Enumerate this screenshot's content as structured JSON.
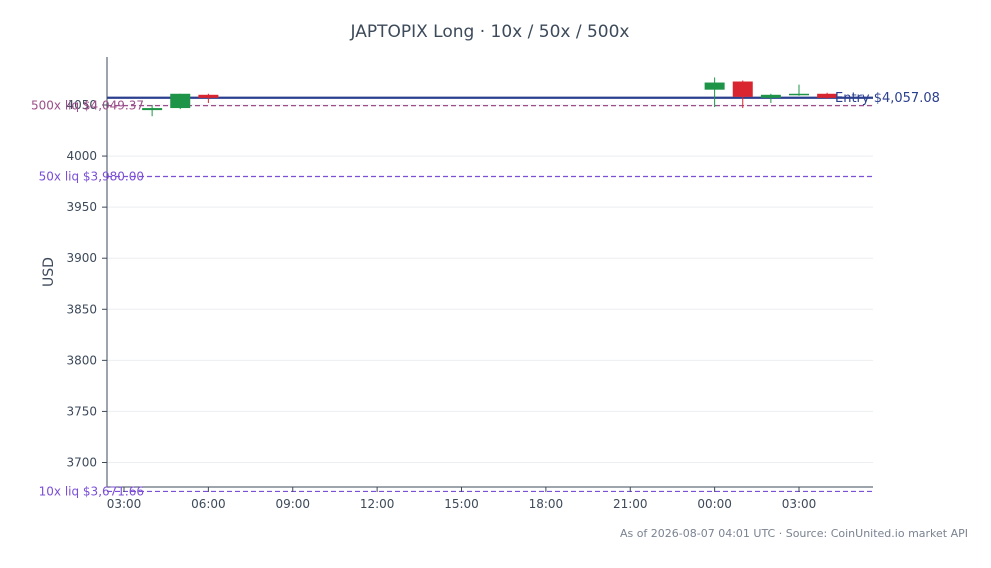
{
  "chart_data": {
    "type": "candlestick",
    "title": "JAPTOPIX Long · 10x / 50x / 500x",
    "xlabel": "",
    "ylabel": "USD",
    "ylim": [
      3676,
      4097
    ],
    "y_ticks": [
      3700,
      3750,
      3800,
      3850,
      3900,
      3950,
      4000,
      4050
    ],
    "x_ticks": [
      "03:00",
      "06:00",
      "09:00",
      "12:00",
      "15:00",
      "18:00",
      "21:00",
      "00:00",
      "03:00"
    ],
    "grid": true,
    "legend": "none",
    "candles": [
      {
        "time": "04:00",
        "open": 4045,
        "high": 4050,
        "low": 4039,
        "close": 4047
      },
      {
        "time": "05:00",
        "open": 4047,
        "high": 4061,
        "low": 4046,
        "close": 4061
      },
      {
        "time": "06:00",
        "open": 4060,
        "high": 4061,
        "low": 4052,
        "close": 4057
      },
      {
        "time": "00:00",
        "open": 4065,
        "high": 4077,
        "low": 4048,
        "close": 4072
      },
      {
        "time": "01:00",
        "open": 4073,
        "high": 4074,
        "low": 4047,
        "close": 4058
      },
      {
        "time": "02:00",
        "open": 4057,
        "high": 4061,
        "low": 4052,
        "close": 4060
      },
      {
        "time": "03:00",
        "open": 4061,
        "high": 4070,
        "low": 4059,
        "close": 4061
      },
      {
        "time": "04:00",
        "open": 4061,
        "high": 4062,
        "low": 4056,
        "close": 4057
      }
    ],
    "levels": [
      {
        "name": "entry",
        "label": "Entry $4,057.08",
        "value": 4057.08,
        "color": "#2b3f8f",
        "style": "solid"
      },
      {
        "name": "liq-500x",
        "label": "500x liq $4,049.37",
        "value": 4049.37,
        "color": "#9b4f8a",
        "style": "dashed"
      },
      {
        "name": "liq-50x",
        "label": "50x liq $3,980.00",
        "value": 3980.0,
        "color": "#7b4fd6",
        "style": "dashed"
      },
      {
        "name": "liq-10x",
        "label": "10x liq $3,671.66",
        "value": 3671.66,
        "color": "#7b4fd6",
        "style": "dashed"
      }
    ],
    "colors": {
      "up": "#1e9448",
      "down": "#d9252f",
      "axis": "#3d4a5a",
      "text": "#3d4a5a",
      "grid": "#eceef1",
      "footer": "#7a8391"
    }
  },
  "footer": {
    "source": "As of 2026-08-07 04:01 UTC · Source: CoinUnited.io market API"
  }
}
